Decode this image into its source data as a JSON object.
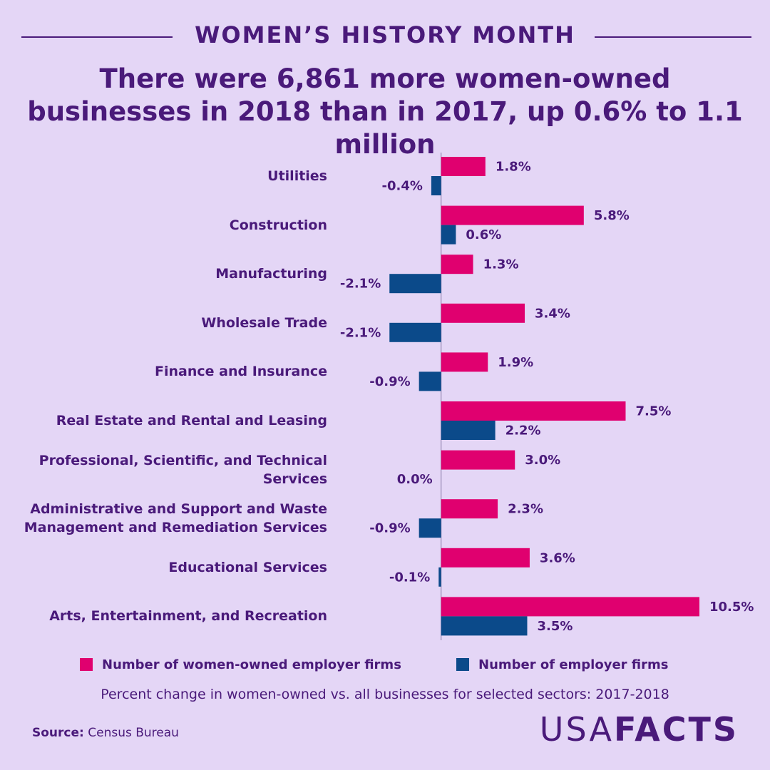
{
  "header": "WOMEN’S HISTORY MONTH",
  "chart_data": {
    "type": "hbar",
    "title": "There were 6,861 more women-owned businesses in 2018 than in 2017, up 0.6% to 1.1 million",
    "caption": "Percent change in women-owned vs. all businesses for selected sectors: 2017-2018",
    "categories": [
      "Utilities",
      "Construction",
      "Manufacturing",
      "Wholesale Trade",
      "Finance and Insurance",
      "Real Estate and Rental and Leasing",
      "Professional, Scientific, and Technical Services",
      "Administrative and Support and Waste Management and Remediation Services",
      "Educational Services",
      "Arts, Entertainment, and Recreation"
    ],
    "series": [
      {
        "name": "Number of women-owned employer firms",
        "color": "#e0006f",
        "values": [
          1.8,
          5.8,
          1.3,
          3.4,
          1.9,
          7.5,
          3.0,
          2.3,
          3.6,
          10.5
        ],
        "value_labels": [
          "1.8%",
          "5.8%",
          "1.3%",
          "3.4%",
          "1.9%",
          "7.5%",
          "3.0%",
          "2.3%",
          "3.6%",
          "10.5%"
        ]
      },
      {
        "name": "Number of employer firms",
        "color": "#0b4a8a",
        "values": [
          -0.4,
          0.6,
          -2.1,
          -2.1,
          -0.9,
          2.2,
          0,
          -0.9,
          -0.1,
          3.5
        ],
        "value_labels": [
          "-0.4%",
          "0.6%",
          "-2.1%",
          "-2.1%",
          "-0.9%",
          "2.2%",
          "0.0%",
          "-0.9%",
          "-0.1%",
          "3.5%"
        ]
      }
    ],
    "xlim": [
      -4.6,
      10.5
    ]
  },
  "source": {
    "label": "Source:",
    "text": "Census Bureau"
  },
  "logo": {
    "first": "USA",
    "second": "FACTS"
  }
}
